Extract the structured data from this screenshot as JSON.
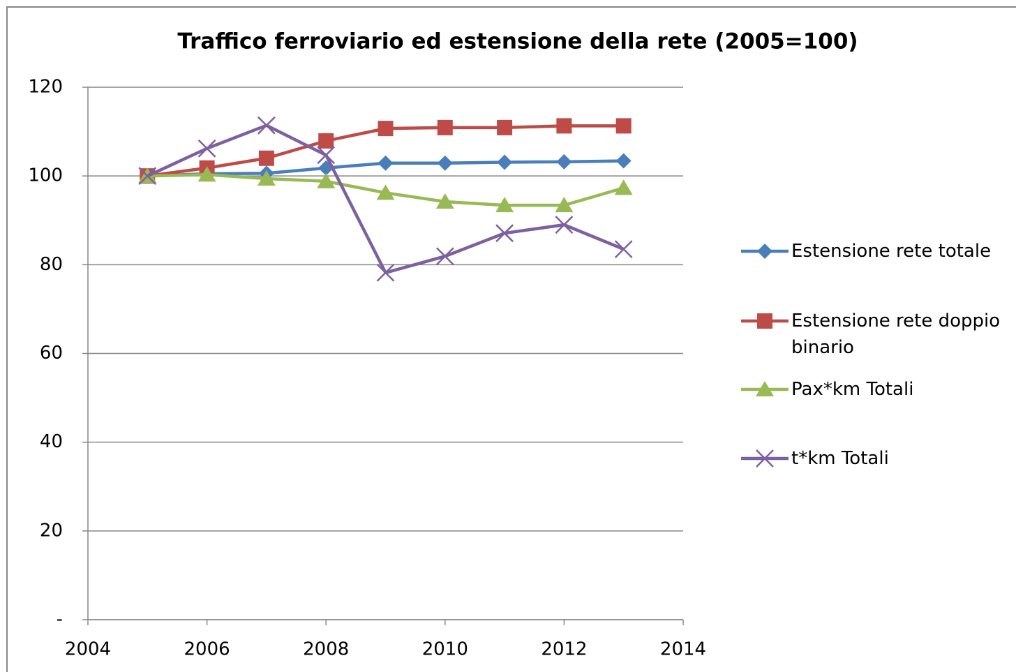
{
  "chart_data": {
    "type": "line",
    "title": "Traffico ferroviario ed estensione della rete (2005=100)",
    "x": [
      2005,
      2006,
      2007,
      2008,
      2009,
      2010,
      2011,
      2012,
      2013
    ],
    "series": [
      {
        "name": "Estensione rete totale",
        "color": "#4a7ebb",
        "marker": "diamond",
        "values": [
          100,
          100.5,
          100.6,
          101.8,
          102.9,
          102.9,
          103.1,
          103.2,
          103.4
        ]
      },
      {
        "name": "Estensione rete doppio binario",
        "color": "#be4b48",
        "marker": "square",
        "values": [
          100,
          101.8,
          104,
          107.9,
          110.7,
          110.9,
          110.9,
          111.3,
          111.3
        ]
      },
      {
        "name": "Pax*km Totali",
        "color": "#98b954",
        "marker": "triangle",
        "values": [
          100,
          100.3,
          99.4,
          98.8,
          96.2,
          94.2,
          93.4,
          93.4,
          97.3
        ]
      },
      {
        "name": "t*km Totali",
        "color": "#7d60a0",
        "marker": "x",
        "values": [
          100,
          106.2,
          111.4,
          104.7,
          78.2,
          81.9,
          87.1,
          89,
          83.5
        ]
      }
    ],
    "xlim": [
      2004,
      2014
    ],
    "xticks": [
      2004,
      2006,
      2008,
      2010,
      2012,
      2014
    ],
    "ylim": [
      0,
      120
    ],
    "yticks": [
      {
        "value": 0,
        "label": "-"
      },
      20,
      40,
      60,
      80,
      100,
      120
    ],
    "grid": true,
    "legend": "right"
  }
}
